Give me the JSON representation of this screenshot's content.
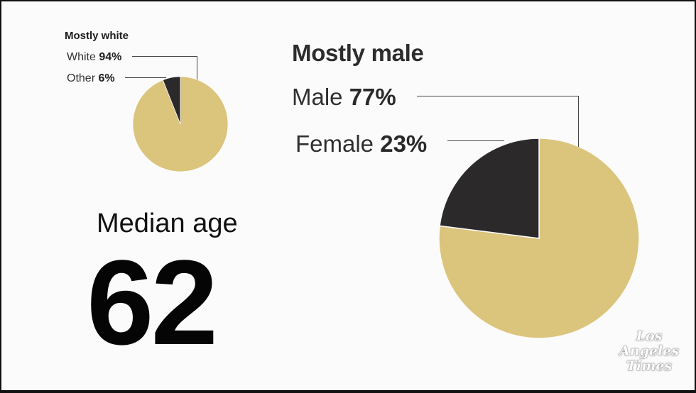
{
  "chart_data": [
    {
      "type": "pie",
      "title": "Mostly white",
      "slices": [
        {
          "label": "White",
          "value": 94,
          "value_text": "94%",
          "color": "#dbc47b"
        },
        {
          "label": "Other",
          "value": 6,
          "value_text": "6%",
          "color": "#2b292a"
        }
      ]
    },
    {
      "type": "pie",
      "title": "Mostly male",
      "slices": [
        {
          "label": "Male",
          "value": 77,
          "value_text": "77%",
          "color": "#dbc47b"
        },
        {
          "label": "Female",
          "value": 23,
          "value_text": "23%",
          "color": "#2b292a"
        }
      ]
    }
  ],
  "median_age": {
    "label": "Median age",
    "value": "62"
  },
  "logo": {
    "lines": [
      "Los",
      "Angeles",
      "Times"
    ]
  },
  "colors": {
    "majority": "#dbc47b",
    "minority": "#2b292a",
    "background": "#fbfbfb"
  }
}
